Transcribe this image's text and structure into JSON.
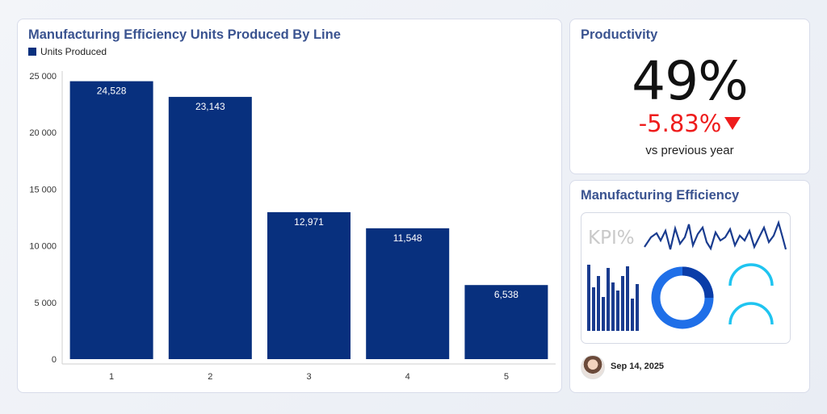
{
  "chart_data": {
    "type": "bar",
    "title": "Manufacturing Efficiency  Units Produced By Line",
    "categories": [
      "1",
      "2",
      "3",
      "4",
      "5"
    ],
    "series": [
      {
        "name": "Units Produced",
        "values": [
          24528,
          23143,
          12971,
          11548,
          6538
        ]
      }
    ],
    "data_labels": [
      "24,528",
      "23,143",
      "12,971",
      "11,548",
      "6,538"
    ],
    "y_ticks": [
      "0",
      "5 000",
      "10 000",
      "15 000",
      "20 000",
      "25 000"
    ],
    "y_tick_values": [
      0,
      5000,
      10000,
      15000,
      20000,
      25000
    ],
    "ylim": [
      0,
      25000
    ],
    "grid": false,
    "legend_position": "top-left",
    "bar_color": "#08307e"
  },
  "productivity": {
    "title": "Productivity",
    "value": "49%",
    "delta": "-5.83%",
    "delta_color": "#ee1c1c",
    "subtext": "vs previous year"
  },
  "efficiency_panel": {
    "title": "Manufacturing Efficiency",
    "kpi_label": "KPI%",
    "date": "Sep 14, 2025",
    "accent_dark": "#1a3c8f",
    "accent_light": "#1fc4f0"
  }
}
